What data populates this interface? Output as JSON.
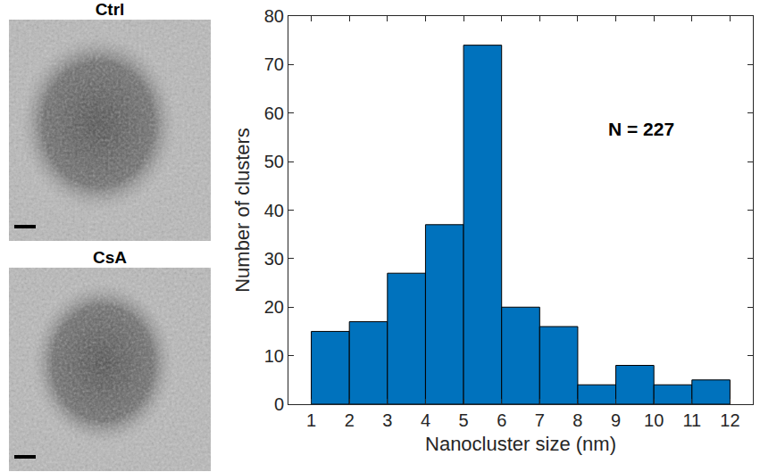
{
  "chart_data": {
    "type": "histogram",
    "panels": [
      {
        "title": "Ctrl"
      },
      {
        "title": "CsA"
      }
    ],
    "xlabel": "Nanocluster size (nm)",
    "ylabel": "Number of clusters",
    "annotations": [
      "N = 227"
    ],
    "bins": [
      1,
      2,
      3,
      4,
      5,
      6,
      7,
      8,
      9,
      10,
      11,
      12
    ],
    "values": [
      15,
      17,
      27,
      37,
      74,
      20,
      16,
      4,
      8,
      4,
      5
    ],
    "color": "#0072bd",
    "xlim": [
      0.4,
      12.6
    ],
    "xticks": [
      1,
      2,
      3,
      4,
      5,
      6,
      7,
      8,
      9,
      10,
      11,
      12
    ],
    "ylim": [
      0,
      80
    ],
    "yticks": [
      0,
      10,
      20,
      30,
      40,
      50,
      60,
      70,
      80
    ],
    "grid": false
  }
}
